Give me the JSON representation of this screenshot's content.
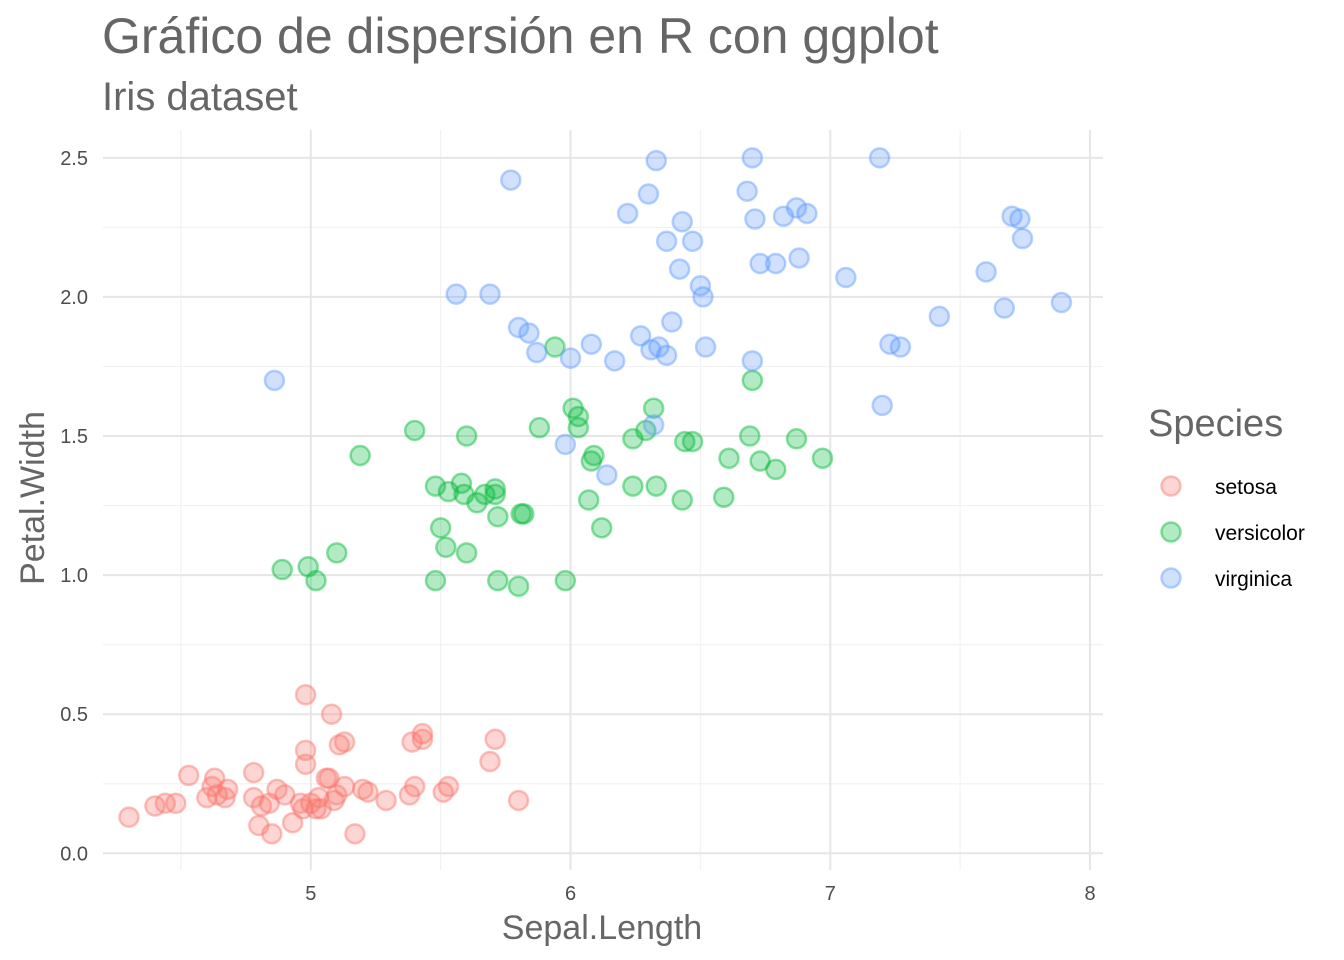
{
  "chart_data": {
    "type": "scatter",
    "title": "Gráfico de dispersión en R con ggplot",
    "subtitle": "Iris dataset",
    "xlabel": "Sepal.Length",
    "ylabel": "Petal.Width",
    "xlim": [
      4.2,
      8.05
    ],
    "ylim": [
      -0.06,
      2.6
    ],
    "x_ticks": [
      5,
      6,
      7,
      8
    ],
    "x_tick_labels": [
      "5",
      "6",
      "7",
      "8"
    ],
    "y_ticks": [
      0.0,
      0.5,
      1.0,
      1.5,
      2.0,
      2.5
    ],
    "y_tick_labels": [
      "0.0",
      "0.5",
      "1.0",
      "1.5",
      "2.0",
      "2.5"
    ],
    "grid": true,
    "legend": {
      "title": "Species",
      "position": "right"
    },
    "series": [
      {
        "name": "setosa",
        "color": "#F8766D",
        "points": [
          [
            4.3,
            0.13
          ],
          [
            4.4,
            0.17
          ],
          [
            4.44,
            0.18
          ],
          [
            4.48,
            0.18
          ],
          [
            4.53,
            0.28
          ],
          [
            4.6,
            0.2
          ],
          [
            4.62,
            0.24
          ],
          [
            4.63,
            0.27
          ],
          [
            4.64,
            0.21
          ],
          [
            4.67,
            0.2
          ],
          [
            4.68,
            0.23
          ],
          [
            4.78,
            0.2
          ],
          [
            4.78,
            0.29
          ],
          [
            4.8,
            0.1
          ],
          [
            4.81,
            0.17
          ],
          [
            4.84,
            0.18
          ],
          [
            4.85,
            0.07
          ],
          [
            4.87,
            0.23
          ],
          [
            4.9,
            0.21
          ],
          [
            4.93,
            0.11
          ],
          [
            4.96,
            0.18
          ],
          [
            4.97,
            0.16
          ],
          [
            4.98,
            0.57
          ],
          [
            4.98,
            0.37
          ],
          [
            4.98,
            0.32
          ],
          [
            5.0,
            0.18
          ],
          [
            5.02,
            0.16
          ],
          [
            5.03,
            0.2
          ],
          [
            5.04,
            0.16
          ],
          [
            5.06,
            0.27
          ],
          [
            5.07,
            0.27
          ],
          [
            5.08,
            0.5
          ],
          [
            5.09,
            0.19
          ],
          [
            5.1,
            0.21
          ],
          [
            5.11,
            0.39
          ],
          [
            5.13,
            0.4
          ],
          [
            5.13,
            0.24
          ],
          [
            5.17,
            0.07
          ],
          [
            5.2,
            0.23
          ],
          [
            5.22,
            0.22
          ],
          [
            5.29,
            0.19
          ],
          [
            5.38,
            0.21
          ],
          [
            5.39,
            0.4
          ],
          [
            5.4,
            0.24
          ],
          [
            5.43,
            0.43
          ],
          [
            5.43,
            0.41
          ],
          [
            5.51,
            0.22
          ],
          [
            5.53,
            0.24
          ],
          [
            5.69,
            0.33
          ],
          [
            5.71,
            0.41
          ],
          [
            5.8,
            0.19
          ]
        ]
      },
      {
        "name": "versicolor",
        "color": "#00BA38",
        "points": [
          [
            4.89,
            1.02
          ],
          [
            4.99,
            1.03
          ],
          [
            5.02,
            0.98
          ],
          [
            5.1,
            1.08
          ],
          [
            5.19,
            1.43
          ],
          [
            5.4,
            1.52
          ],
          [
            5.48,
            1.32
          ],
          [
            5.48,
            0.98
          ],
          [
            5.5,
            1.17
          ],
          [
            5.52,
            1.1
          ],
          [
            5.53,
            1.3
          ],
          [
            5.58,
            1.33
          ],
          [
            5.59,
            1.29
          ],
          [
            5.6,
            1.08
          ],
          [
            5.6,
            1.5
          ],
          [
            5.64,
            1.26
          ],
          [
            5.67,
            1.29
          ],
          [
            5.71,
            1.31
          ],
          [
            5.71,
            1.29
          ],
          [
            5.72,
            1.21
          ],
          [
            5.72,
            0.98
          ],
          [
            5.8,
            0.96
          ],
          [
            5.81,
            1.22
          ],
          [
            5.82,
            1.22
          ],
          [
            5.88,
            1.53
          ],
          [
            5.94,
            1.82
          ],
          [
            5.98,
            0.98
          ],
          [
            6.01,
            1.6
          ],
          [
            6.03,
            1.57
          ],
          [
            6.03,
            1.53
          ],
          [
            6.07,
            1.27
          ],
          [
            6.08,
            1.41
          ],
          [
            6.09,
            1.43
          ],
          [
            6.12,
            1.17
          ],
          [
            6.24,
            1.49
          ],
          [
            6.24,
            1.32
          ],
          [
            6.29,
            1.52
          ],
          [
            6.32,
            1.6
          ],
          [
            6.33,
            1.32
          ],
          [
            6.43,
            1.27
          ],
          [
            6.44,
            1.48
          ],
          [
            6.47,
            1.48
          ],
          [
            6.59,
            1.28
          ],
          [
            6.61,
            1.42
          ],
          [
            6.69,
            1.5
          ],
          [
            6.7,
            1.7
          ],
          [
            6.73,
            1.41
          ],
          [
            6.79,
            1.38
          ],
          [
            6.87,
            1.49
          ],
          [
            6.97,
            1.42
          ]
        ]
      },
      {
        "name": "virginica",
        "color": "#619CFF",
        "points": [
          [
            4.86,
            1.7
          ],
          [
            5.56,
            2.01
          ],
          [
            5.69,
            2.01
          ],
          [
            5.77,
            2.42
          ],
          [
            5.8,
            1.89
          ],
          [
            5.84,
            1.87
          ],
          [
            5.87,
            1.8
          ],
          [
            5.98,
            1.47
          ],
          [
            6.0,
            1.78
          ],
          [
            6.08,
            1.83
          ],
          [
            6.14,
            1.36
          ],
          [
            6.17,
            1.77
          ],
          [
            6.22,
            2.3
          ],
          [
            6.27,
            1.86
          ],
          [
            6.3,
            2.37
          ],
          [
            6.31,
            1.81
          ],
          [
            6.32,
            1.54
          ],
          [
            6.33,
            2.49
          ],
          [
            6.34,
            1.82
          ],
          [
            6.37,
            1.79
          ],
          [
            6.37,
            2.2
          ],
          [
            6.39,
            1.91
          ],
          [
            6.42,
            2.1
          ],
          [
            6.43,
            2.27
          ],
          [
            6.47,
            2.2
          ],
          [
            6.5,
            2.04
          ],
          [
            6.51,
            2.0
          ],
          [
            6.52,
            1.82
          ],
          [
            6.68,
            2.38
          ],
          [
            6.7,
            2.5
          ],
          [
            6.7,
            1.77
          ],
          [
            6.71,
            2.28
          ],
          [
            6.73,
            2.12
          ],
          [
            6.79,
            2.12
          ],
          [
            6.82,
            2.29
          ],
          [
            6.87,
            2.32
          ],
          [
            6.88,
            2.14
          ],
          [
            6.91,
            2.3
          ],
          [
            7.06,
            2.07
          ],
          [
            7.19,
            2.5
          ],
          [
            7.2,
            1.61
          ],
          [
            7.23,
            1.83
          ],
          [
            7.27,
            1.82
          ],
          [
            7.42,
            1.93
          ],
          [
            7.6,
            2.09
          ],
          [
            7.67,
            1.96
          ],
          [
            7.7,
            2.29
          ],
          [
            7.73,
            2.28
          ],
          [
            7.74,
            2.21
          ],
          [
            7.89,
            1.98
          ]
        ]
      }
    ]
  }
}
